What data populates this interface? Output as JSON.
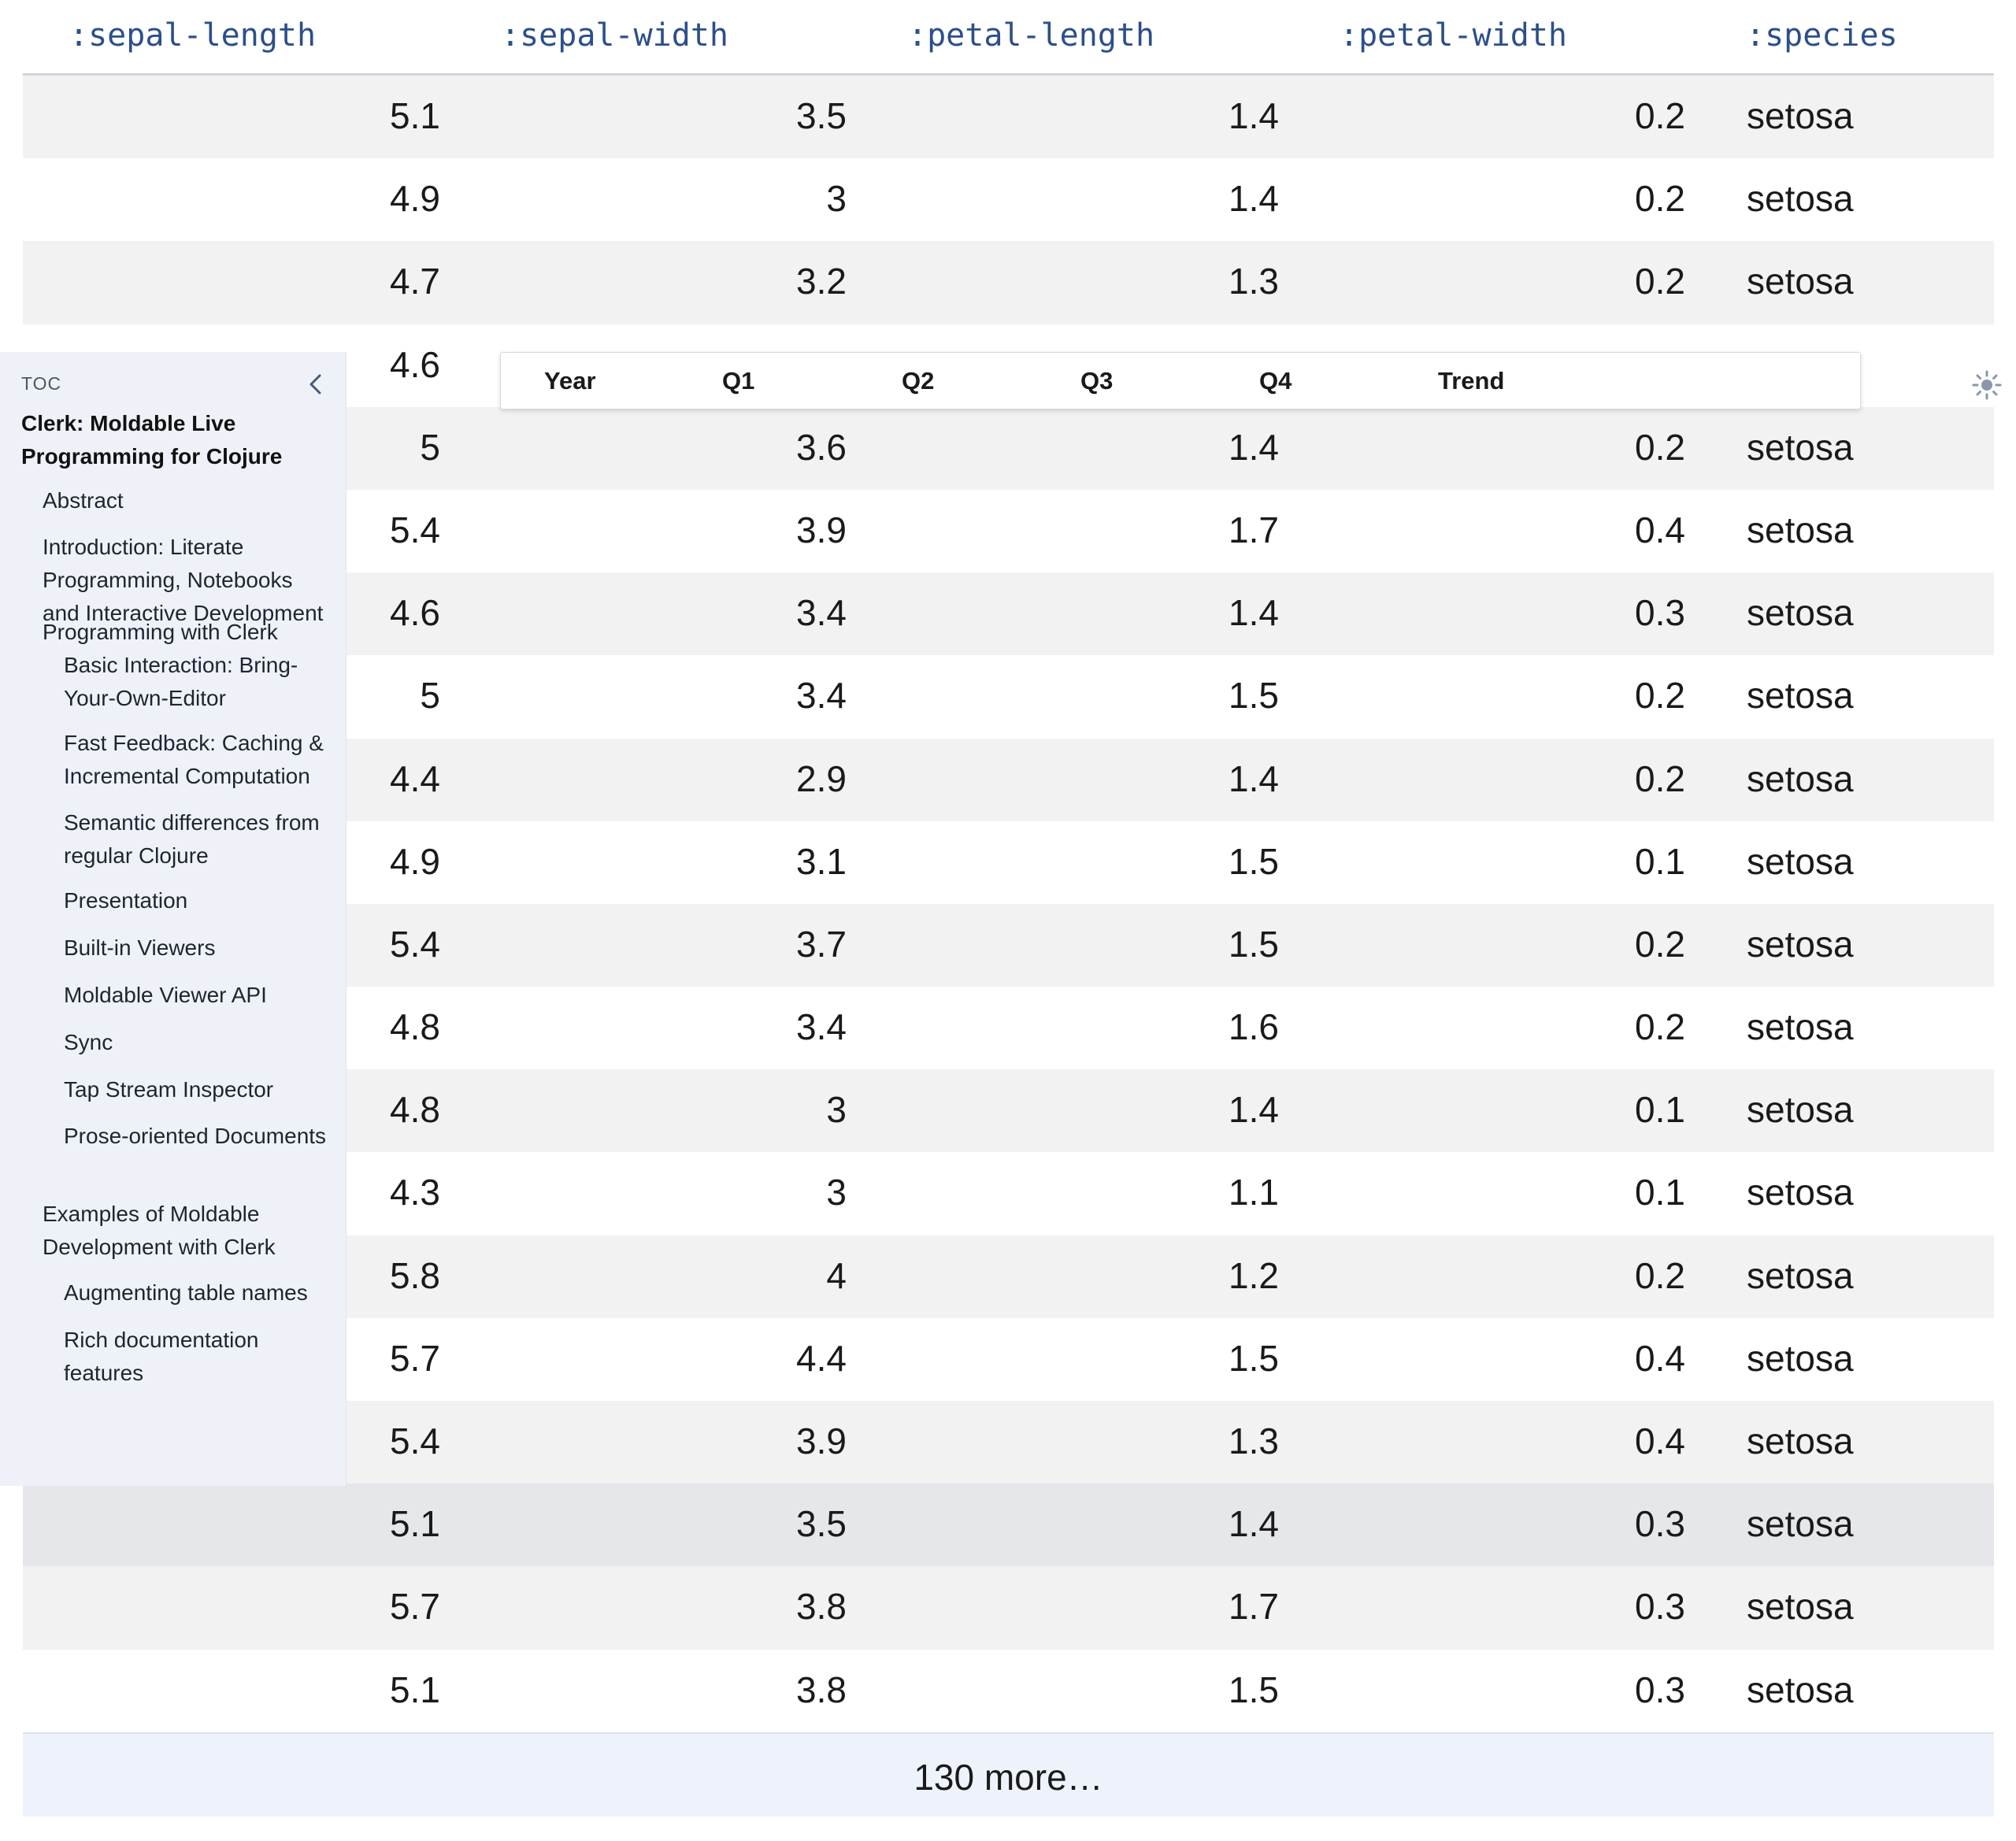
{
  "table": {
    "columns": [
      ":sepal-length",
      ":sepal-width",
      ":petal-length",
      ":petal-width",
      ":species"
    ],
    "rows": [
      [
        "5.1",
        "3.5",
        "1.4",
        "0.2",
        "setosa"
      ],
      [
        "4.9",
        "3",
        "1.4",
        "0.2",
        "setosa"
      ],
      [
        "4.7",
        "3.2",
        "1.3",
        "0.2",
        "setosa"
      ],
      [
        "4.6",
        "",
        "",
        "",
        ""
      ],
      [
        "5",
        "3.6",
        "1.4",
        "0.2",
        "setosa"
      ],
      [
        "5.4",
        "3.9",
        "1.7",
        "0.4",
        "setosa"
      ],
      [
        "4.6",
        "3.4",
        "1.4",
        "0.3",
        "setosa"
      ],
      [
        "5",
        "3.4",
        "1.5",
        "0.2",
        "setosa"
      ],
      [
        "4.4",
        "2.9",
        "1.4",
        "0.2",
        "setosa"
      ],
      [
        "4.9",
        "3.1",
        "1.5",
        "0.1",
        "setosa"
      ],
      [
        "5.4",
        "3.7",
        "1.5",
        "0.2",
        "setosa"
      ],
      [
        "4.8",
        "3.4",
        "1.6",
        "0.2",
        "setosa"
      ],
      [
        "4.8",
        "3",
        "1.4",
        "0.1",
        "setosa"
      ],
      [
        "4.3",
        "3",
        "1.1",
        "0.1",
        "setosa"
      ],
      [
        "5.8",
        "4",
        "1.2",
        "0.2",
        "setosa"
      ],
      [
        "5.7",
        "4.4",
        "1.5",
        "0.4",
        "setosa"
      ],
      [
        "5.4",
        "3.9",
        "1.3",
        "0.4",
        "setosa"
      ],
      [
        "5.1",
        "3.5",
        "1.4",
        "0.3",
        "setosa"
      ],
      [
        "5.7",
        "3.8",
        "1.7",
        "0.3",
        "setosa"
      ],
      [
        "5.1",
        "3.8",
        "1.5",
        "0.3",
        "setosa"
      ]
    ],
    "more_label": "130 more…"
  },
  "quarters_header": {
    "columns": [
      "Year",
      "Q1",
      "Q2",
      "Q3",
      "Q4",
      "Trend"
    ]
  },
  "toc": {
    "label": "TOC",
    "collapse_icon": "chevron-left-icon",
    "title": "Clerk: Moldable Live Programming for Clojure",
    "items": [
      {
        "level": 1,
        "text": "Abstract"
      },
      {
        "level": 1,
        "text": "Introduction: Literate Programming, Notebooks and Interactive Development"
      },
      {
        "level": 1,
        "text": "Programming with Clerk"
      },
      {
        "level": 2,
        "text": "Basic Interaction: Bring-Your-Own-Editor"
      },
      {
        "level": 2,
        "text": "Fast Feedback: Caching & Incremental Computation"
      },
      {
        "level": 2,
        "text": "Semantic differences from regular Clojure"
      },
      {
        "level": 2,
        "text": "Presentation"
      },
      {
        "level": 2,
        "text": "Built-in Viewers"
      },
      {
        "level": 2,
        "text": "Moldable Viewer API"
      },
      {
        "level": 2,
        "text": "Sync"
      },
      {
        "level": 2,
        "text": "Tap Stream Inspector"
      },
      {
        "level": 2,
        "text": "Prose-oriented Documents"
      },
      {
        "level": 1,
        "text": "Examples of Moldable Development with Clerk"
      },
      {
        "level": 2,
        "text": "Augmenting table names"
      },
      {
        "level": 2,
        "text": "Rich documentation features"
      }
    ]
  },
  "theme_toggle": {
    "icon": "sun-icon"
  }
}
